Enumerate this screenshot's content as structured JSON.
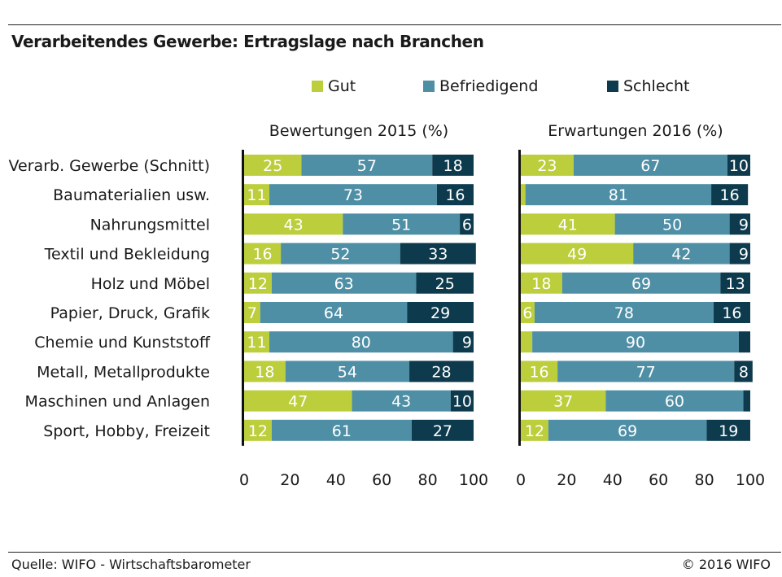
{
  "title": "Verarbeitendes Gewerbe: Ertragslage nach Branchen",
  "footer": {
    "source": "Quelle: WIFO - Wirtschaftsbarometer",
    "copyright": "© 2016 WIFO"
  },
  "colors": {
    "gut": "#bcce3c",
    "befriedigend": "#4f8fa6",
    "schlecht": "#0d3b4d"
  },
  "chart_data": {
    "type": "bar",
    "orientation": "horizontal",
    "stacked": true,
    "legend": {
      "placement": "top",
      "entries": [
        "Gut",
        "Befriedigend",
        "Schlecht"
      ]
    },
    "categories": [
      "Verarb. Gewerbe (Schnitt)",
      "Baumaterialien usw.",
      "Nahrungsmittel",
      "Textil und Bekleidung",
      "Holz und Möbel",
      "Papier, Druck, Grafik",
      "Chemie und Kunststoff",
      "Metall, Metallprodukte",
      "Maschinen und Anlagen",
      "Sport, Hobby, Freizeit"
    ],
    "panels": [
      {
        "title": "Bewertungen 2015 (%)",
        "xlim": [
          0,
          100
        ],
        "xticks": [
          "0",
          "20",
          "40",
          "60",
          "80",
          "100"
        ],
        "series": [
          {
            "name": "Gut",
            "values": [
              25,
              11,
              43,
              16,
              12,
              7,
              11,
              18,
              47,
              12
            ],
            "labels": [
              "25",
              "11",
              "43",
              "16",
              "12",
              "7",
              "11",
              "18",
              "47",
              "12"
            ]
          },
          {
            "name": "Befriedigend",
            "values": [
              57,
              73,
              51,
              52,
              63,
              64,
              80,
              54,
              43,
              61
            ],
            "labels": [
              "57",
              "73",
              "51",
              "52",
              "63",
              "64",
              "80",
              "54",
              "43",
              "61"
            ]
          },
          {
            "name": "Schlecht",
            "values": [
              18,
              16,
              6,
              33,
              25,
              29,
              9,
              28,
              10,
              27
            ],
            "labels": [
              "18",
              "16",
              "6",
              "33",
              "25",
              "29",
              "9",
              "28",
              "10",
              "27"
            ]
          }
        ]
      },
      {
        "title": "Erwartungen 2016 (%)",
        "xlim": [
          0,
          100
        ],
        "xticks": [
          "0",
          "20",
          "40",
          "60",
          "80",
          "100"
        ],
        "series": [
          {
            "name": "Gut",
            "values": [
              23,
              2,
              41,
              49,
              18,
              6,
              5,
              16,
              37,
              12
            ],
            "labels": [
              "23",
              "",
              "41",
              "49",
              "18",
              "6",
              "",
              "16",
              "37",
              "12"
            ]
          },
          {
            "name": "Befriedigend",
            "values": [
              67,
              81,
              50,
              42,
              69,
              78,
              90,
              77,
              60,
              69
            ],
            "labels": [
              "67",
              "81",
              "50",
              "42",
              "69",
              "78",
              "90",
              "77",
              "60",
              "69"
            ]
          },
          {
            "name": "Schlecht",
            "values": [
              10,
              16,
              9,
              9,
              13,
              16,
              5,
              8,
              3,
              19
            ],
            "labels": [
              "10",
              "16",
              "9",
              "9",
              "13",
              "16",
              "",
              "8",
              "",
              "19"
            ]
          }
        ]
      }
    ]
  }
}
